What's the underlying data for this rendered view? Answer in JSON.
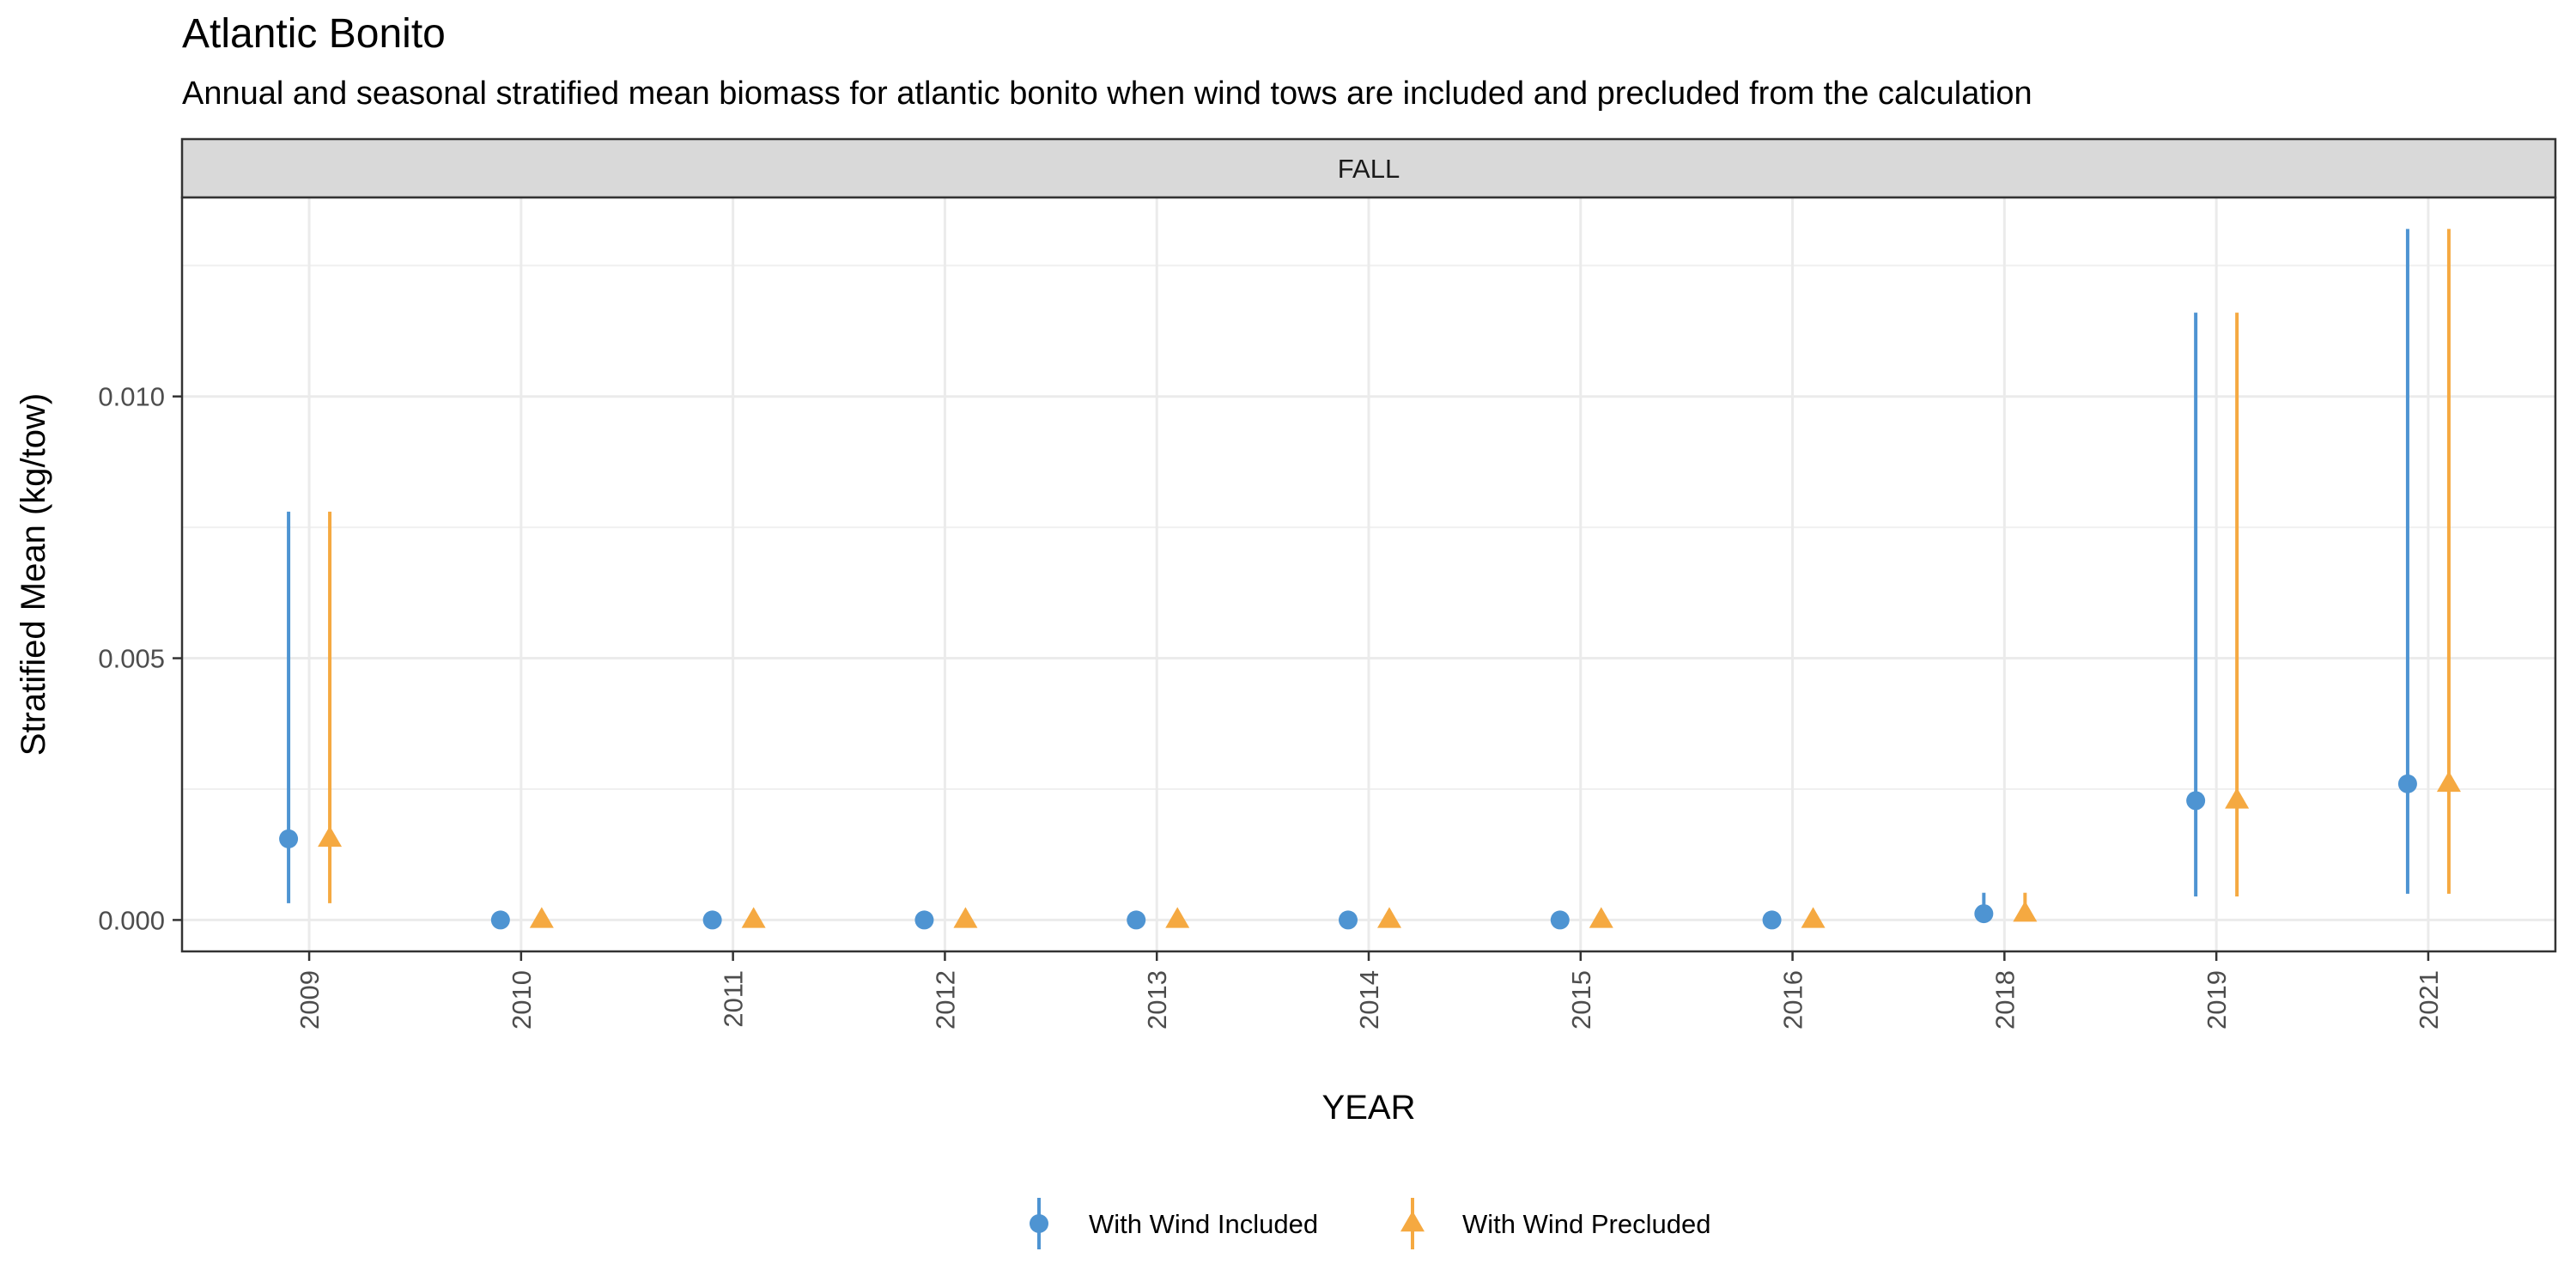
{
  "chart_data": {
    "type": "scatter",
    "title": "Atlantic Bonito",
    "subtitle": "Annual and seasonal stratified mean biomass for atlantic bonito when wind tows are included and precluded from the calculation",
    "facet": "FALL",
    "xlabel": "YEAR",
    "ylabel": "Stratified Mean (kg/tow)",
    "categories": [
      "2009",
      "2010",
      "2011",
      "2012",
      "2013",
      "2014",
      "2015",
      "2016",
      "2018",
      "2019",
      "2021"
    ],
    "ylim": [
      -0.0006,
      0.0138
    ],
    "yticks": [
      0.0,
      0.005,
      0.01
    ],
    "ytick_labels": [
      "0.000",
      "0.005",
      "0.010"
    ],
    "grid": true,
    "legend_position": "bottom",
    "series": [
      {
        "name": "With Wind Included",
        "color": "#4E94D2",
        "marker": "circle",
        "values": [
          0.00155,
          0.0,
          0.0,
          0.0,
          0.0,
          0.0,
          0.0,
          0.0,
          0.00012,
          0.00228,
          0.0026
        ],
        "lower": [
          0.00032,
          0.0,
          0.0,
          0.0,
          0.0,
          0.0,
          0.0,
          0.0,
          0.0,
          0.00045,
          0.0005
        ],
        "upper": [
          0.0078,
          0.0,
          0.0,
          0.0,
          0.0,
          0.0,
          0.0,
          0.0,
          0.00052,
          0.0116,
          0.0132
        ]
      },
      {
        "name": "With Wind Precluded",
        "color": "#F5A941",
        "marker": "triangle",
        "values": [
          0.00155,
          0.0,
          0.0,
          0.0,
          0.0,
          0.0,
          0.0,
          0.0,
          0.00012,
          0.00228,
          0.0026
        ],
        "lower": [
          0.00032,
          0.0,
          0.0,
          0.0,
          0.0,
          0.0,
          0.0,
          0.0,
          0.0,
          0.00045,
          0.0005
        ],
        "upper": [
          0.0078,
          0.0,
          0.0,
          0.0,
          0.0,
          0.0,
          0.0,
          0.0,
          0.00052,
          0.0116,
          0.0132
        ]
      }
    ]
  }
}
